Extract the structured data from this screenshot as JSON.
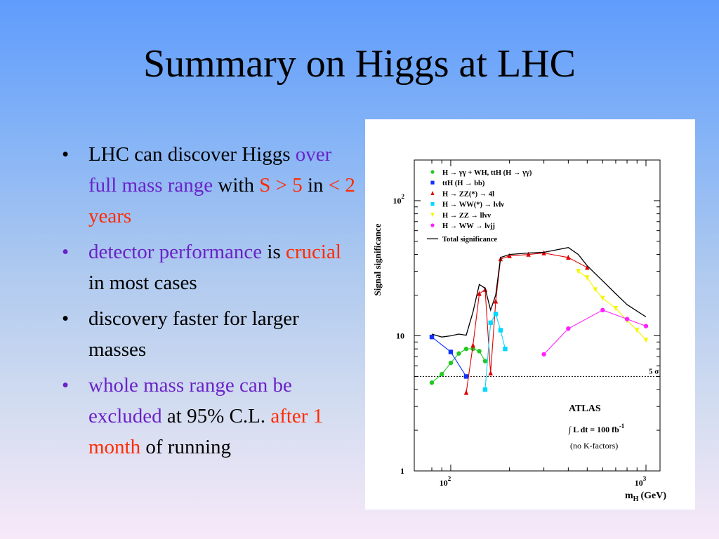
{
  "slide": {
    "title": "Summary on Higgs at LHC",
    "bullets": [
      {
        "mark_color": "#000000",
        "segments": [
          {
            "text": "LHC can discover Higgs ",
            "color": "black"
          },
          {
            "text": "over full mass range",
            "color": "purple"
          },
          {
            "text": " with ",
            "color": "black"
          },
          {
            "text": "S > 5",
            "color": "red"
          },
          {
            "text": " in ",
            "color": "black"
          },
          {
            "text": "< 2 years",
            "color": "red"
          }
        ]
      },
      {
        "mark_color": "#6a22c8",
        "segments": [
          {
            "text": "detector performance",
            "color": "purple"
          },
          {
            "text": " is ",
            "color": "black"
          },
          {
            "text": "crucial",
            "color": "red"
          },
          {
            "text": " in most cases",
            "color": "black"
          }
        ]
      },
      {
        "mark_color": "#000000",
        "segments": [
          {
            "text": "discovery faster for larger masses",
            "color": "black"
          }
        ]
      },
      {
        "mark_color": "#6a22c8",
        "segments": [
          {
            "text": "whole mass range can be excluded",
            "color": "purple"
          },
          {
            "text": " at 95% C.L. ",
            "color": "black"
          },
          {
            "text": "after 1 month",
            "color": "red"
          },
          {
            "text": " of running",
            "color": "black"
          }
        ]
      }
    ]
  },
  "colors": {
    "purple": "#6a22c8",
    "red": "#ff2a00",
    "black": "#000000"
  },
  "chart_data": {
    "type": "line",
    "xscale": "log",
    "yscale": "log",
    "xlim": [
      80,
      1000
    ],
    "ylim": [
      1,
      200
    ],
    "ylabel": "Signal significance",
    "xlabel_main": "m",
    "xlabel_sub": "H",
    "xlabel_unit": "(GeV)",
    "x_tick_labels": [
      {
        "base": "10",
        "exp": "2",
        "value": 100
      },
      {
        "base": "10",
        "exp": "3",
        "value": 1000
      }
    ],
    "y_tick_labels": [
      {
        "text": "1",
        "value": 1
      },
      {
        "text": "10",
        "value": 10
      },
      {
        "base": "10",
        "exp": "2",
        "value": 100
      }
    ],
    "threshold": {
      "label": "5 σ",
      "value": 5
    },
    "annotations": {
      "experiment": "ATLAS",
      "lumi_prefix": "∫ L dt = 100 fb",
      "lumi_exp": "-1",
      "note": "(no K-factors)"
    },
    "legend": [
      {
        "series": 0,
        "label": "H → γγ + WH, ttH (H → γγ)"
      },
      {
        "series": 1,
        "label": "ttH (H → bb)"
      },
      {
        "series": 2,
        "label": "H → ZZ(*) → 4l"
      },
      {
        "series": 3,
        "label": "H → WW(*) → lνlν"
      },
      {
        "series": 4,
        "label": "H → ZZ → llνν"
      },
      {
        "series": 5,
        "label": "H → WW → lνjj"
      },
      {
        "series": 6,
        "label": "Total significance"
      }
    ],
    "series": [
      {
        "name": "H → γγ + WH, ttH (H → γγ)",
        "color": "#22c822",
        "marker": "circle",
        "x": [
          80,
          90,
          100,
          110,
          120,
          130,
          140,
          150
        ],
        "y": [
          4.5,
          5.2,
          6.3,
          7.4,
          8.0,
          8.0,
          7.7,
          6.5
        ]
      },
      {
        "name": "ttH (H → bb)",
        "color": "#1030ff",
        "marker": "square",
        "x": [
          80,
          100,
          120
        ],
        "y": [
          9.8,
          7.6,
          5.0
        ]
      },
      {
        "name": "H → ZZ(*) → 4l",
        "color": "#e00000",
        "marker": "triangle",
        "x": [
          120,
          130,
          140,
          150,
          160,
          170,
          180,
          200,
          250,
          300,
          400,
          500
        ],
        "y": [
          3.8,
          8.5,
          20.5,
          22.0,
          5.3,
          18.0,
          37.0,
          39.0,
          40.0,
          41.0,
          38.0,
          32.0
        ]
      },
      {
        "name": "H → WW(*) → lνlν",
        "color": "#00d8ff",
        "marker": "square",
        "x": [
          150,
          160,
          170,
          180,
          190
        ],
        "y": [
          4.0,
          12.5,
          14.5,
          11.0,
          8.0
        ]
      },
      {
        "name": "H → ZZ → llνν",
        "color": "#f5f500",
        "marker": "triangle-down",
        "x": [
          450,
          500,
          550,
          600,
          700,
          800,
          900,
          1000
        ],
        "y": [
          30.0,
          27.0,
          22.0,
          19.0,
          16.0,
          13.0,
          11.0,
          9.3
        ]
      },
      {
        "name": "H → WW → lνjj",
        "color": "#ff20ff",
        "marker": "circle",
        "x": [
          300,
          400,
          600,
          800,
          1000
        ],
        "y": [
          7.3,
          11.3,
          15.5,
          13.3,
          11.8
        ]
      },
      {
        "name": "Total significance",
        "color": "#000000",
        "marker": "none",
        "x": [
          80,
          90,
          100,
          110,
          120,
          130,
          140,
          150,
          160,
          170,
          180,
          200,
          250,
          300,
          400,
          450,
          500,
          600,
          700,
          800,
          1000
        ],
        "y": [
          10.3,
          9.8,
          10.0,
          10.3,
          10.1,
          15.0,
          24.0,
          22.5,
          15.5,
          20.0,
          38.0,
          40.0,
          41.0,
          41.5,
          45.0,
          40.0,
          33.0,
          25.5,
          20.5,
          17.0,
          13.8
        ]
      }
    ]
  }
}
